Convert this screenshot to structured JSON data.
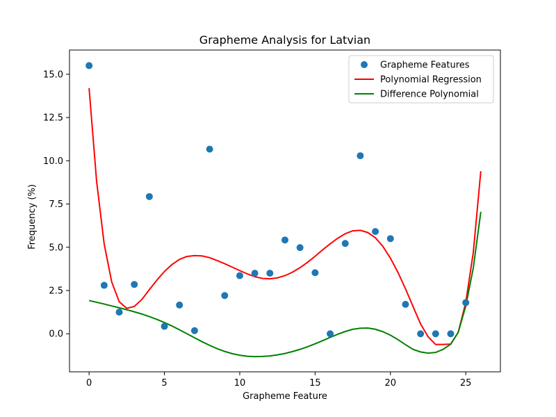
{
  "chart_data": {
    "type": "scatter",
    "title": "Grapheme Analysis for Latvian",
    "xlabel": "Grapheme Feature",
    "ylabel": "Frequency (%)",
    "xlim": [
      -1.3,
      27.3
    ],
    "ylim": [
      -2.2,
      16.4
    ],
    "xticks": [
      0,
      5,
      10,
      15,
      20,
      25
    ],
    "yticks": [
      0.0,
      2.5,
      5.0,
      7.5,
      10.0,
      12.5,
      15.0
    ],
    "legend_position": "upper-right",
    "grid": false,
    "series": [
      {
        "name": "Grapheme Features",
        "type": "scatter",
        "color": "#1f77b4",
        "x": [
          0,
          1,
          2,
          3,
          4,
          5,
          6,
          7,
          8,
          9,
          10,
          11,
          12,
          13,
          14,
          15,
          16,
          17,
          18,
          19,
          20,
          21,
          22,
          23,
          24,
          25
        ],
        "y": [
          15.5,
          2.8,
          1.25,
          2.85,
          7.93,
          0.43,
          1.66,
          0.18,
          10.67,
          2.21,
          3.36,
          3.5,
          3.5,
          5.42,
          4.98,
          3.53,
          0.0,
          5.22,
          10.29,
          5.91,
          5.5,
          1.7,
          0.0,
          0.0,
          0.0,
          1.8
        ]
      },
      {
        "name": "Polynomial Regression",
        "type": "line",
        "color": "#ff0000",
        "x": [
          0,
          0.5,
          1,
          1.5,
          2,
          2.5,
          3,
          3.5,
          4,
          4.5,
          5,
          5.5,
          6,
          6.5,
          7,
          7.5,
          8,
          8.5,
          9,
          9.5,
          10,
          10.5,
          11,
          11.5,
          12,
          12.5,
          13,
          13.5,
          14,
          14.5,
          15,
          15.5,
          16,
          16.5,
          17,
          17.5,
          18,
          18.5,
          19,
          19.5,
          20,
          20.5,
          21,
          21.5,
          22,
          22.5,
          23,
          23.5,
          24,
          24.5,
          25,
          25.5,
          26
        ],
        "y": [
          14.2,
          8.8,
          5.2,
          3.0,
          1.85,
          1.47,
          1.58,
          1.98,
          2.55,
          3.1,
          3.6,
          4.0,
          4.3,
          4.47,
          4.52,
          4.5,
          4.4,
          4.23,
          4.05,
          3.85,
          3.65,
          3.46,
          3.3,
          3.2,
          3.18,
          3.23,
          3.36,
          3.56,
          3.82,
          4.13,
          4.48,
          4.85,
          5.2,
          5.52,
          5.78,
          5.95,
          5.98,
          5.85,
          5.55,
          5.05,
          4.37,
          3.55,
          2.6,
          1.58,
          0.57,
          -0.17,
          -0.62,
          -0.62,
          -0.6,
          0.08,
          1.8,
          4.7,
          9.4
        ]
      },
      {
        "name": "Difference Polynomial",
        "type": "line",
        "color": "#008000",
        "x": [
          0,
          0.5,
          1,
          1.5,
          2,
          2.5,
          3,
          3.5,
          4,
          4.5,
          5,
          5.5,
          6,
          6.5,
          7,
          7.5,
          8,
          8.5,
          9,
          9.5,
          10,
          10.5,
          11,
          11.5,
          12,
          12.5,
          13,
          13.5,
          14,
          14.5,
          15,
          15.5,
          16,
          16.5,
          17,
          17.5,
          18,
          18.5,
          19,
          19.5,
          20,
          20.5,
          21,
          21.5,
          22,
          22.5,
          23,
          23.5,
          24,
          24.5,
          25,
          25.5,
          26
        ],
        "y": [
          1.92,
          1.82,
          1.72,
          1.61,
          1.5,
          1.39,
          1.27,
          1.14,
          0.99,
          0.83,
          0.65,
          0.45,
          0.23,
          0.0,
          -0.23,
          -0.46,
          -0.67,
          -0.86,
          -1.02,
          -1.15,
          -1.24,
          -1.3,
          -1.32,
          -1.31,
          -1.28,
          -1.22,
          -1.14,
          -1.03,
          -0.9,
          -0.75,
          -0.58,
          -0.4,
          -0.21,
          -0.03,
          0.13,
          0.26,
          0.32,
          0.33,
          0.26,
          0.12,
          -0.08,
          -0.34,
          -0.63,
          -0.9,
          -1.05,
          -1.12,
          -1.08,
          -0.9,
          -0.6,
          0.08,
          1.6,
          3.8,
          7.05
        ]
      }
    ]
  }
}
